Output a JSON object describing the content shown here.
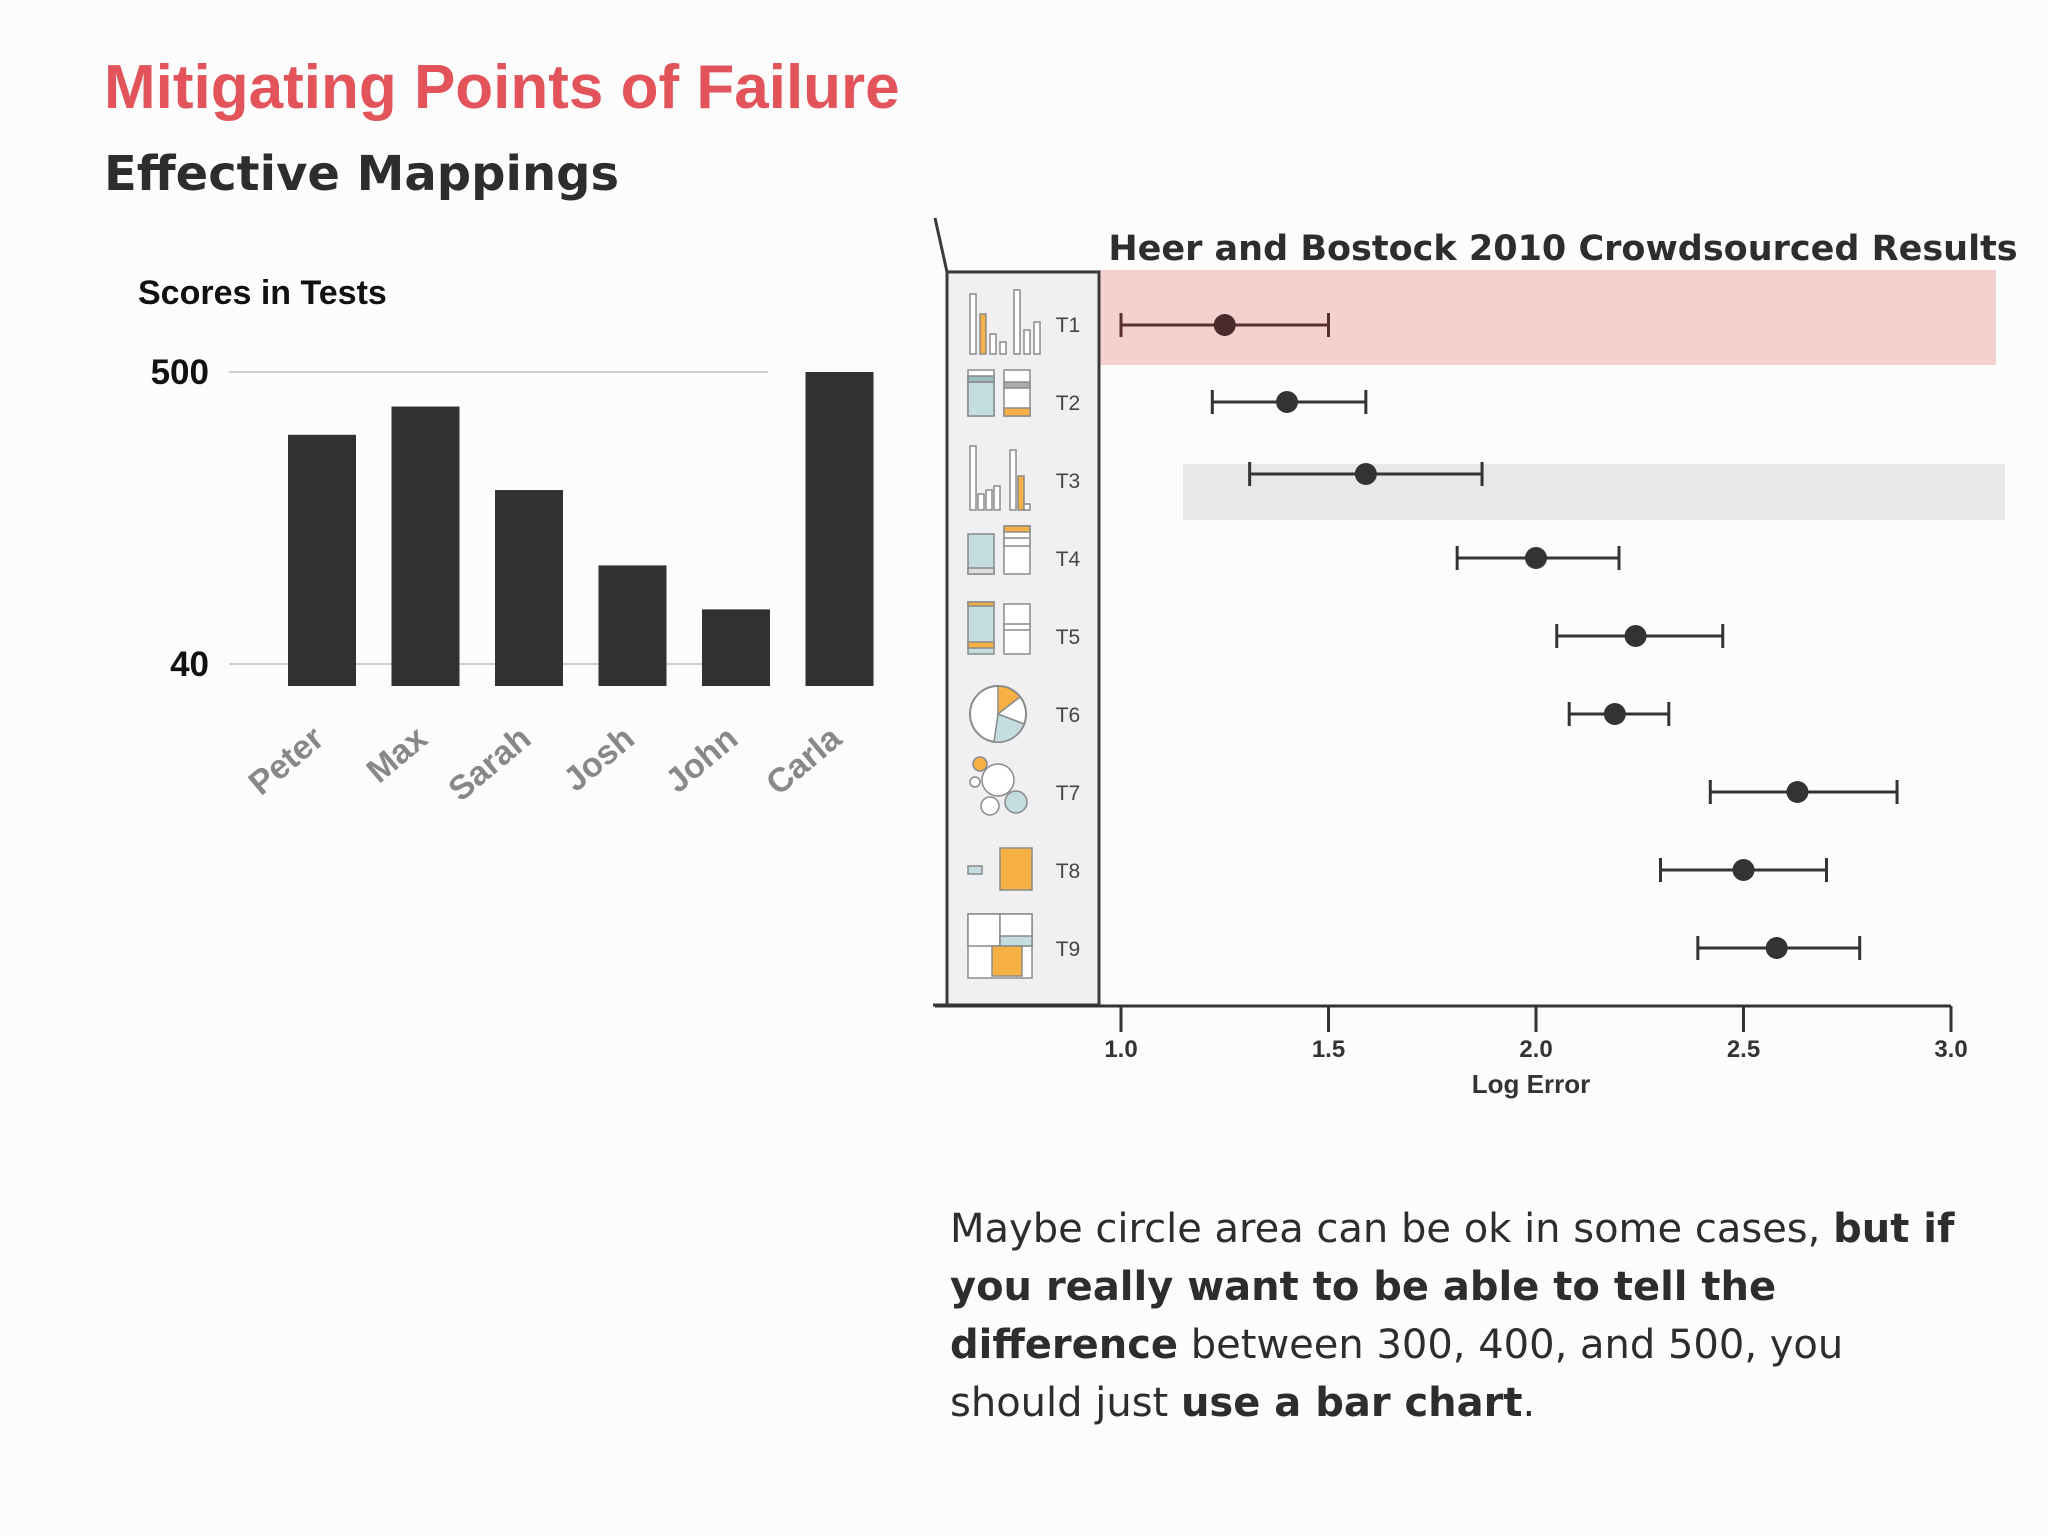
{
  "slide": {
    "title": "Mitigating Points of Failure",
    "subtitle": "Effective Mappings",
    "title_color": "#e2535a"
  },
  "caption": {
    "p1": "Maybe circle area can be ok in some cases, ",
    "b1": "but if you really want to be able to tell the difference",
    "p2": " between 300, 400, and 500, you should just ",
    "b2": "use a bar chart",
    "p3": "."
  },
  "chart_data": [
    {
      "type": "bar",
      "title": "Scores in Tests",
      "categories": [
        "Peter",
        "Max",
        "Sarah",
        "Josh",
        "John",
        "Carla"
      ],
      "values": [
        400,
        445,
        312,
        192,
        122,
        500
      ],
      "yticks": [
        {
          "label": "500",
          "value": 500
        },
        {
          "label": "40",
          "value": 40
        }
      ],
      "ylim": [
        0,
        500
      ],
      "bar_color": "#323032"
    },
    {
      "type": "scatter",
      "title": "Heer and Bostock 2010 Crowdsourced Results",
      "xlabel": "Log Error",
      "xlim": [
        1.0,
        3.0
      ],
      "xticks": [
        "1.0",
        "1.5",
        "2.0",
        "2.5",
        "3.0"
      ],
      "series": [
        {
          "label": "T1",
          "mean": 1.25,
          "low": 1.0,
          "high": 1.5,
          "highlight": "#f4d1cf"
        },
        {
          "label": "T2",
          "mean": 1.4,
          "low": 1.22,
          "high": 1.59
        },
        {
          "label": "T3",
          "mean": 1.59,
          "low": 1.31,
          "high": 1.87,
          "highlight": "#e8e8ea"
        },
        {
          "label": "T4",
          "mean": 2.0,
          "low": 1.81,
          "high": 2.2
        },
        {
          "label": "T5",
          "mean": 2.24,
          "low": 2.05,
          "high": 2.45
        },
        {
          "label": "T6",
          "mean": 2.19,
          "low": 2.08,
          "high": 2.32
        },
        {
          "label": "T7",
          "mean": 2.63,
          "low": 2.42,
          "high": 2.87
        },
        {
          "label": "T8",
          "mean": 2.5,
          "low": 2.3,
          "high": 2.7
        },
        {
          "label": "T9",
          "mean": 2.58,
          "low": 2.39,
          "high": 2.78
        }
      ],
      "colors": {
        "orange": "#f6b043",
        "teal": "#c4dde0",
        "icon_stroke": "#8a8a8a",
        "dot": "#333333"
      }
    }
  ]
}
